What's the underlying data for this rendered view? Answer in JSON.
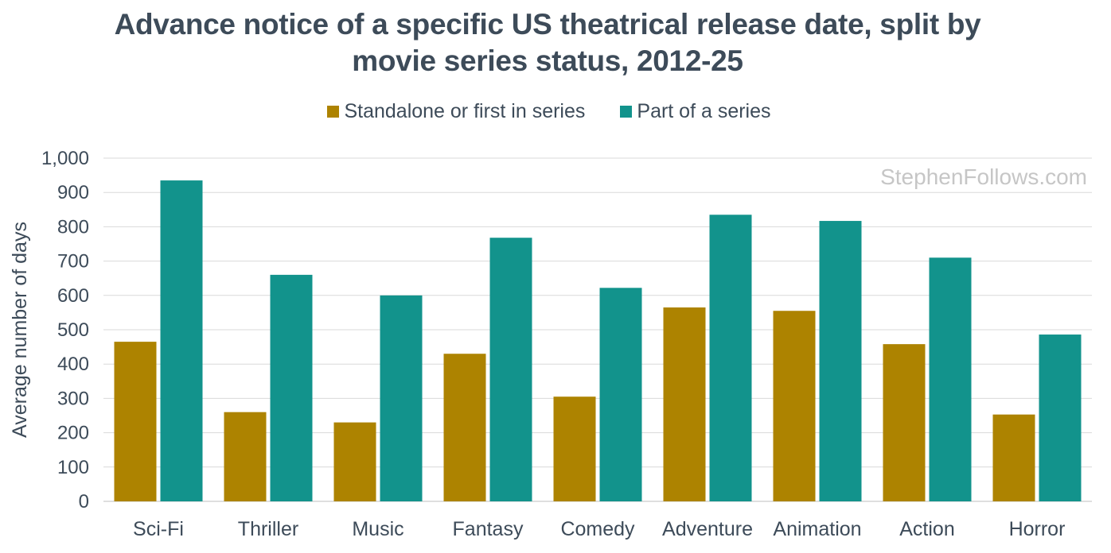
{
  "chart_data": {
    "type": "bar",
    "title_line1": "Advance notice of a specific US theatrical release date, split by",
    "title_line2": "movie series status, 2012-25",
    "ylabel": "Average number of days",
    "xlabel": "",
    "ylim": [
      0,
      1000
    ],
    "yticks": [
      0,
      100,
      200,
      300,
      400,
      500,
      600,
      700,
      800,
      900,
      1000
    ],
    "ytick_labels": [
      "0",
      "100",
      "200",
      "300",
      "400",
      "500",
      "600",
      "700",
      "800",
      "900",
      "1,000"
    ],
    "categories": [
      "Sci-Fi",
      "Thriller",
      "Music",
      "Fantasy",
      "Comedy",
      "Adventure",
      "Animation",
      "Action",
      "Horror"
    ],
    "series": [
      {
        "name": "Standalone or first in series",
        "color": "#ad8300",
        "values": [
          465,
          260,
          230,
          430,
          305,
          565,
          555,
          458,
          253
        ]
      },
      {
        "name": "Part of a series",
        "color": "#12938c",
        "values": [
          935,
          660,
          600,
          768,
          622,
          835,
          817,
          710,
          486
        ]
      }
    ],
    "grid": true,
    "legend_position": "top-center",
    "watermark": "StephenFollows.com"
  }
}
